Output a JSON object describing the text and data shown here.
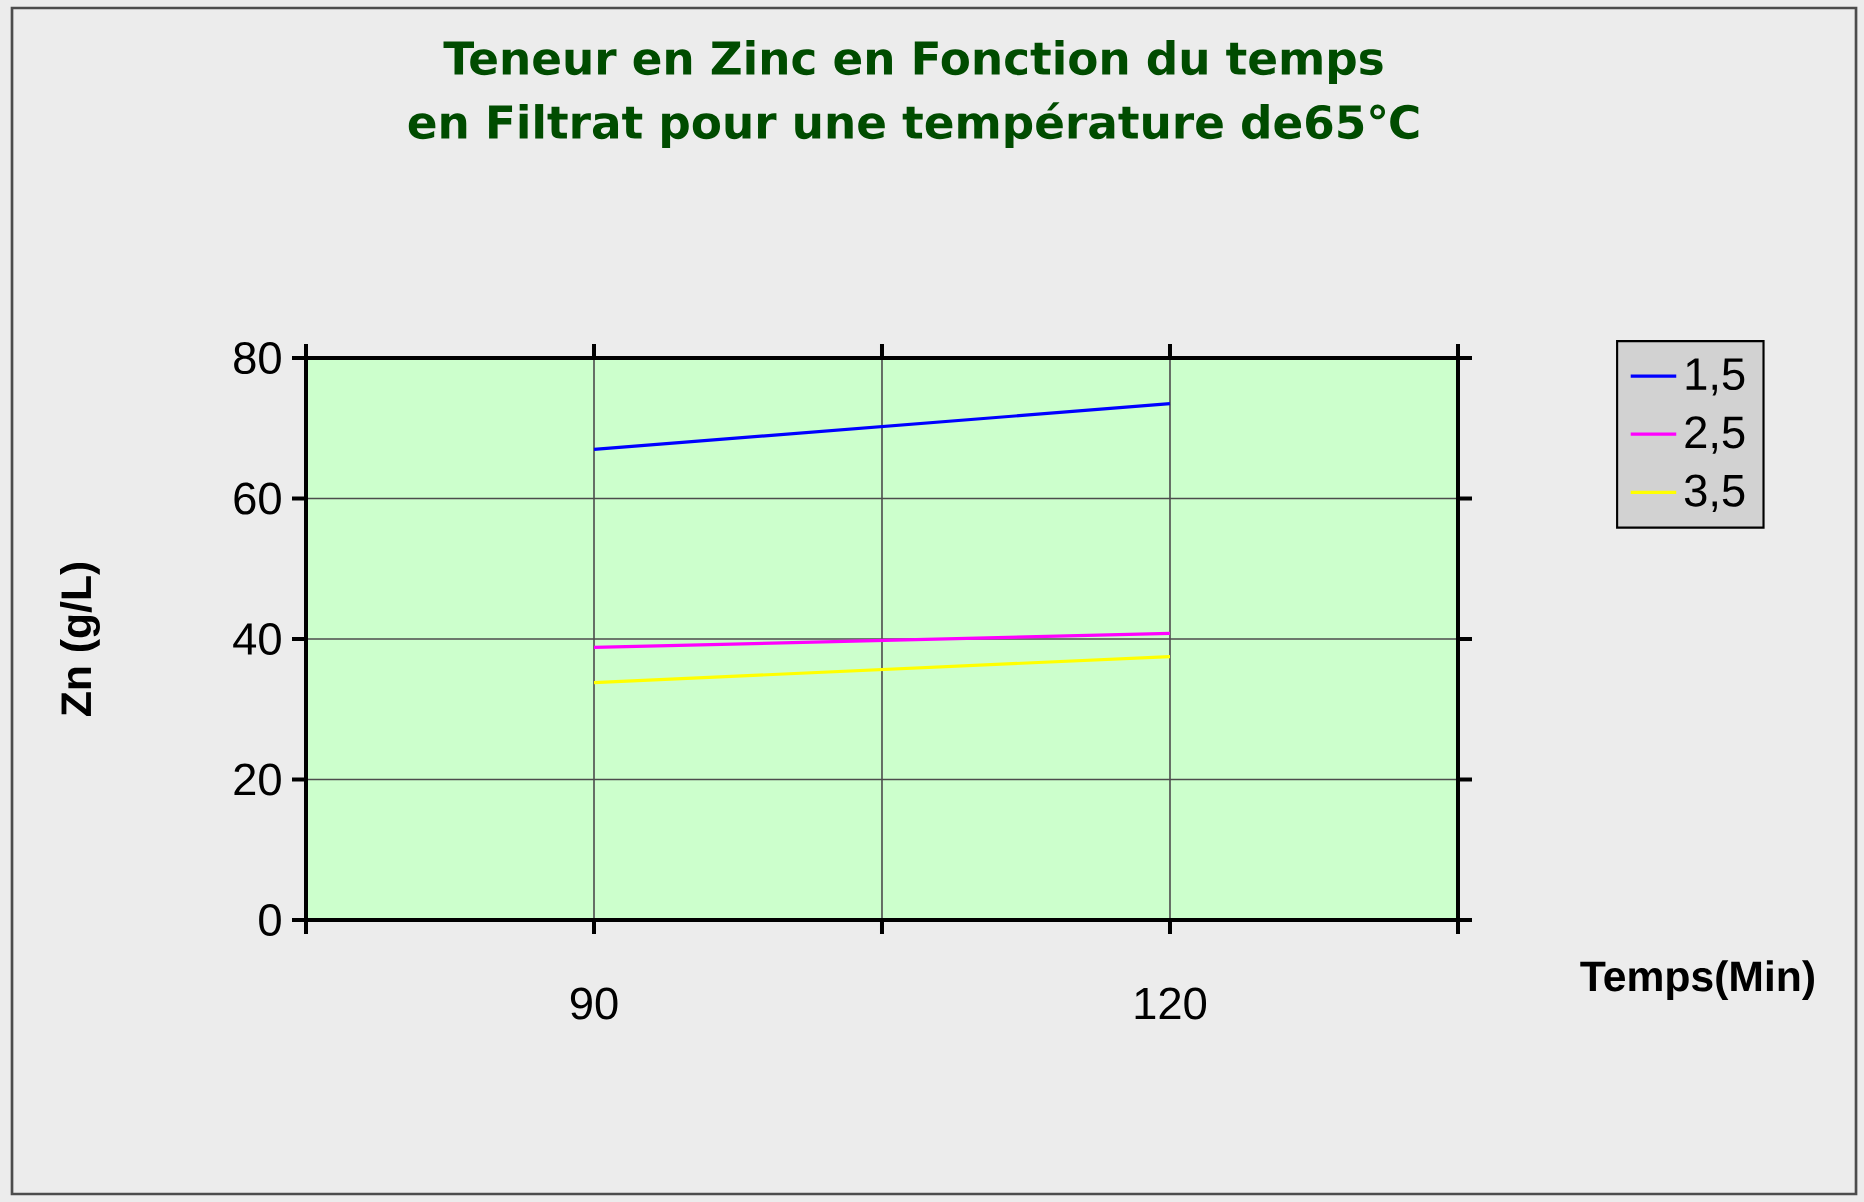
{
  "chart_data": {
    "type": "line",
    "title": "Teneur en Zinc en Fonction du temps en Filtrat pour une température de65℃",
    "xlabel": "Temps(Min)",
    "ylabel": "Zn (g/L)",
    "x": [
      90,
      120
    ],
    "series": [
      {
        "name": "1,5",
        "color": "#0000ff",
        "values": [
          67,
          73.5
        ]
      },
      {
        "name": "2,5",
        "color": "#ff00ff",
        "values": [
          38.8,
          40.8
        ]
      },
      {
        "name": "3,5",
        "color": "#ffff00",
        "values": [
          33.8,
          37.5
        ]
      }
    ],
    "xlim": [
      75,
      135
    ],
    "xticks": [
      {
        "value": 75,
        "label": null
      },
      90,
      {
        "value": 105,
        "label": null
      },
      120,
      {
        "value": 135,
        "label": null
      }
    ],
    "ylim": [
      0,
      80
    ],
    "yticks": [
      0,
      20,
      40,
      60,
      80
    ],
    "grid": true,
    "legend": "right",
    "marker": "none",
    "line_style": "solid"
  }
}
